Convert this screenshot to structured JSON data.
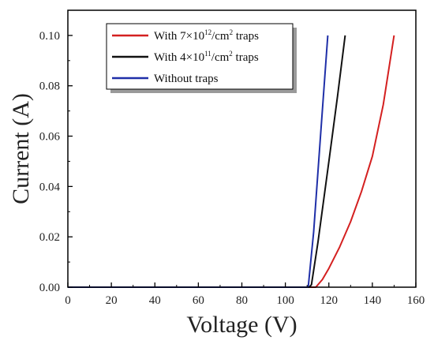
{
  "chart_data": {
    "type": "line",
    "xlabel": "Voltage (V)",
    "ylabel": "Current (A)",
    "xlim": [
      0,
      160
    ],
    "ylim": [
      0,
      0.11
    ],
    "x_ticks": [
      0,
      20,
      40,
      60,
      80,
      100,
      120,
      140,
      160
    ],
    "x_tick_labels": [
      "0",
      "20",
      "40",
      "60",
      "80",
      "100",
      "120",
      "140",
      "160"
    ],
    "y_ticks": [
      0,
      0.02,
      0.04,
      0.06,
      0.08,
      0.1
    ],
    "y_tick_labels": [
      "0.00",
      "0.02",
      "0.04",
      "0.06",
      "0.08",
      "0.10"
    ],
    "grid": false,
    "legend_position": "top-right",
    "series": [
      {
        "name": "With 7×10¹²/cm² traps",
        "label_parts": [
          "With 7×10",
          "12",
          "/cm",
          "2",
          " traps"
        ],
        "color": "#d42020",
        "points": [
          [
            0,
            0
          ],
          [
            110,
            0
          ],
          [
            114,
            0
          ],
          [
            117,
            0.003
          ],
          [
            120,
            0.0075
          ],
          [
            125,
            0.016
          ],
          [
            130,
            0.026
          ],
          [
            135,
            0.038
          ],
          [
            140,
            0.052
          ],
          [
            145,
            0.0725
          ],
          [
            150,
            0.1
          ]
        ]
      },
      {
        "name": "With 4×10¹¹/cm² traps",
        "label_parts": [
          "With 4×10",
          "11",
          "/cm",
          "2",
          " traps"
        ],
        "color": "#111111",
        "points": [
          [
            0,
            0
          ],
          [
            111,
            0
          ],
          [
            112,
            0.001
          ],
          [
            115,
            0.018
          ],
          [
            120,
            0.05
          ],
          [
            124,
            0.076
          ],
          [
            127.5,
            0.1
          ]
        ]
      },
      {
        "name": "Without traps",
        "label_parts": [
          "Without traps"
        ],
        "color": "#1f2fa8",
        "points": [
          [
            0,
            0
          ],
          [
            110.5,
            0
          ],
          [
            113,
            0.022
          ],
          [
            116,
            0.058
          ],
          [
            119.5,
            0.1
          ]
        ]
      }
    ]
  }
}
